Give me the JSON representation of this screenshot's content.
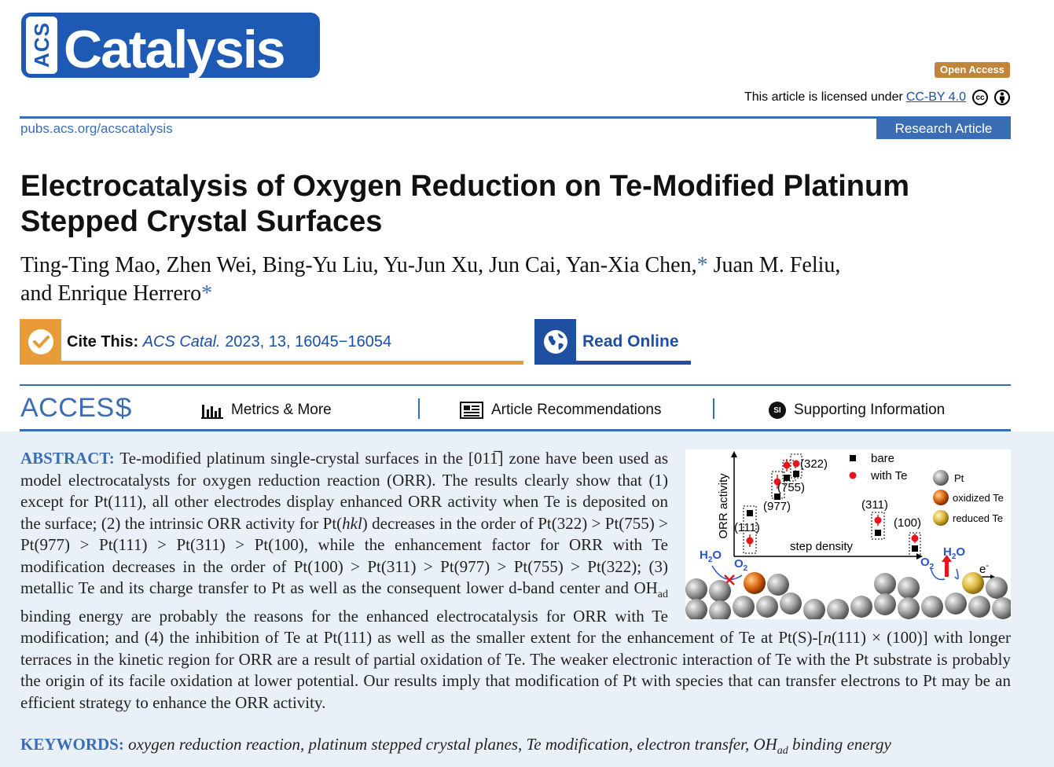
{
  "header": {
    "logo_prefix": "ACS",
    "logo_text": "Catalysis",
    "open_access": "Open Access",
    "license_text": "This article is licensed under",
    "license_link": "CC-BY 4.0",
    "journal_url": "pubs.acs.org/acscatalysis",
    "article_type": "Research Article",
    "colors": {
      "accent": "#3a6db4",
      "cite_orange": "#e89b39",
      "read_blue": "#1e4fa0",
      "oa_gold": "#c0843a"
    }
  },
  "article": {
    "title": "Electrocatalysis of Oxygen Reduction on Te-Modified Platinum Stepped Crystal Surfaces",
    "authors_line1": "Ting-Ting Mao, Zhen Wei, Bing-Yu Liu, Yu-Jun Xu, Jun Cai, Yan-Xia Chen,",
    "authors_line1b": "Juan M. Feliu,",
    "authors_line2": "and Enrique Herrero",
    "star": "*"
  },
  "cite": {
    "label": "Cite This:",
    "journal": "ACS Catal.",
    "details": "2023, 13, 16045−16054",
    "read_online": "Read Online"
  },
  "access": {
    "label": "ACCESS",
    "metrics": "Metrics & More",
    "recommendations": "Article Recommendations",
    "supporting": "Supporting Information",
    "si_badge": "SI"
  },
  "abstract": {
    "head": "ABSTRACT:",
    "p1": "Te-modified platinum single-crystal surfaces in the [011̅] zone have been used as model electrocatalysts for oxygen reduction reaction (ORR). The results clearly show that (1) except for Pt(111), all other electrodes display enhanced ORR activity when Te is deposited on the surface; (2) the intrinsic ORR activity for Pt(",
    "hkl": "hkl",
    "p2": ") decreases in the order of Pt(322) > Pt(755) > Pt(977) > Pt(111) > Pt(311) > Pt(100), while the enhancement factor for ORR with Te modification decreases in the order of Pt(100) > Pt(311) > Pt(977) > Pt(755) > Pt(322); (3) metallic Te and its charge transfer to Pt as well as the consequent lower d-band center and OH",
    "ad": "ad",
    "p3": " binding energy are probably the reasons for the enhanced electrocatalysis for ORR with Te modification; and (4) the inhibition of Te at Pt(111) as well as the smaller extent for the enhancement of Te at Pt(S)-[",
    "n": "n",
    "p4": "(111) × (100)] with longer terraces in the kinetic region for ORR are a result of partial oxidation of Te. The weaker electronic interaction of Te with the Pt substrate is probably the origin of its facile oxidation at lower potential. Our results imply that modification of Pt with species that can transfer electrons to Pt may be an efficient strategy to enhance the ORR activity."
  },
  "keywords": {
    "head": "KEYWORDS:",
    "value": "oxygen reduction reaction, platinum stepped crystal planes, Te modification, electron transfer, OH",
    "ad": "ad",
    "tail": " binding energy"
  },
  "toc_graphic": {
    "ylabel": "ORR activity",
    "xlabel": "step density",
    "legend_bare": "bare",
    "legend_te": "with Te",
    "legend_pt": "Pt",
    "legend_oxte": "oxidized Te",
    "legend_redte": "reduced Te",
    "labels": [
      "(322)",
      "(755)",
      "(977)",
      "(111)",
      "(311)",
      "(100)"
    ],
    "h2o": "H",
    "h2o_sub": "2",
    "h2o_o": "O",
    "o2": "O",
    "o2_sub": "2",
    "electron": "e",
    "electron_sup": "-",
    "colors": {
      "bare": "#000000",
      "with_te": "#e8141b",
      "arrow_blue": "#2a55c8",
      "arrow_red": "#e8141b"
    }
  }
}
